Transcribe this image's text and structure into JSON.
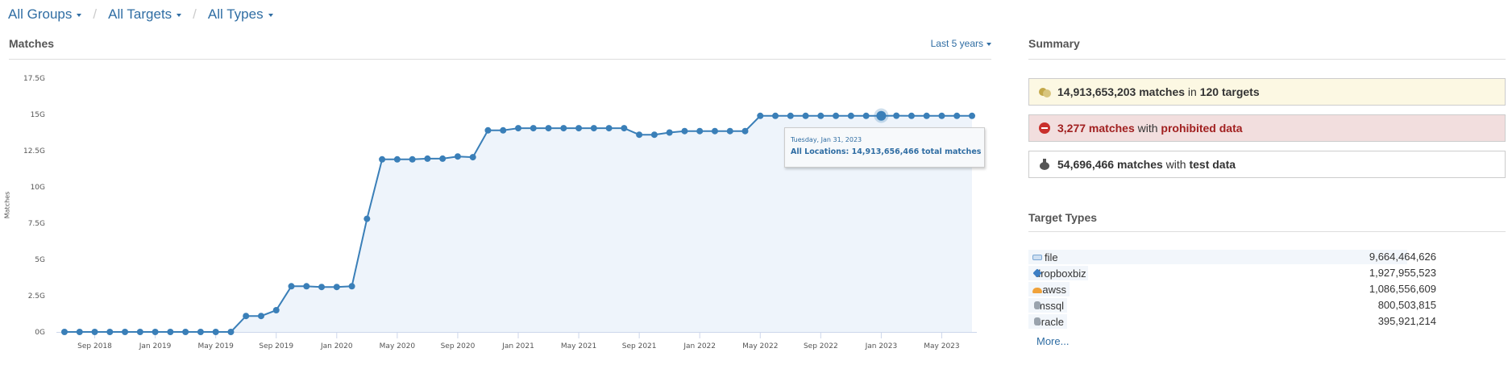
{
  "breadcrumbs": [
    {
      "label": "All Groups"
    },
    {
      "label": "All Targets"
    },
    {
      "label": "All Types"
    }
  ],
  "matches_panel": {
    "title": "Matches",
    "range_label": "Last 5 years"
  },
  "tooltip": {
    "date": "Tuesday, Jan 31, 2023",
    "text": "All Locations: 14,913,656,466 total matches"
  },
  "summary": {
    "title": "Summary",
    "rows": [
      {
        "count": "14,913,653,203 matches",
        "mid": " in ",
        "tail": "120 targets",
        "icon": "matches-bubbles-icon",
        "bg": "#fcf8e3",
        "color": "#333"
      },
      {
        "count": "3,277 matches",
        "mid": " with ",
        "tail": "prohibited data",
        "icon": "no-entry-icon",
        "bg": "#f2dede",
        "color": "#a12020"
      },
      {
        "count": "54,696,466 matches",
        "mid": " with ",
        "tail": "test data",
        "icon": "flask-icon",
        "bg": "#ffffff",
        "color": "#333"
      }
    ]
  },
  "target_types": {
    "title": "Target Types",
    "items": [
      {
        "name": "file",
        "value": "9,664,464,626",
        "icon": "drive-icon"
      },
      {
        "name": "dropboxbiz",
        "value": "1,927,955,523",
        "icon": "dropbox-icon"
      },
      {
        "name": "awss",
        "value": "1,086,556,609",
        "icon": "aws-cloud-icon"
      },
      {
        "name": "mssql",
        "value": "800,503,815",
        "icon": "database-icon"
      },
      {
        "name": "oracle",
        "value": "395,921,214",
        "icon": "database-icon"
      }
    ],
    "more_label": "More..."
  },
  "colors": {
    "link": "#2f6da3",
    "line": "#3a7fb8",
    "fill": "#eef4fb"
  },
  "chart_data": {
    "type": "area",
    "ylabel": "Matches",
    "ylim": [
      0,
      17.5
    ],
    "yunit": "G",
    "yticks": [
      "0G",
      "2.5G",
      "5G",
      "7.5G",
      "10G",
      "12.5G",
      "15G",
      "17.5G"
    ],
    "x_start": "Jul 2018",
    "x_end": "Jul 2023",
    "x_step": "month",
    "xticks": [
      "Sep 2018",
      "Jan 2019",
      "May 2019",
      "Sep 2019",
      "Jan 2020",
      "May 2020",
      "Sep 2020",
      "Jan 2021",
      "May 2021",
      "Sep 2021",
      "Jan 2022",
      "May 2022",
      "Sep 2022",
      "Jan 2023",
      "May 2023"
    ],
    "values": [
      0,
      0,
      0,
      0,
      0,
      0,
      0,
      0,
      0,
      0,
      0,
      0,
      1.1,
      1.1,
      1.5,
      3.15,
      3.15,
      3.1,
      3.1,
      3.15,
      7.8,
      11.9,
      11.9,
      11.9,
      11.95,
      11.95,
      12.1,
      12.05,
      13.9,
      13.9,
      14.05,
      14.05,
      14.05,
      14.05,
      14.05,
      14.05,
      14.05,
      14.05,
      13.6,
      13.6,
      13.75,
      13.85,
      13.85,
      13.85,
      13.85,
      13.85,
      14.9,
      14.9,
      14.9,
      14.9,
      14.9,
      14.9,
      14.9,
      14.9,
      14.9,
      14.91,
      14.9,
      14.9,
      14.9,
      14.9,
      14.9
    ],
    "highlighted": {
      "label": "Jan 2023",
      "value": 14.913656466
    },
    "grid": false,
    "legend": "none"
  }
}
